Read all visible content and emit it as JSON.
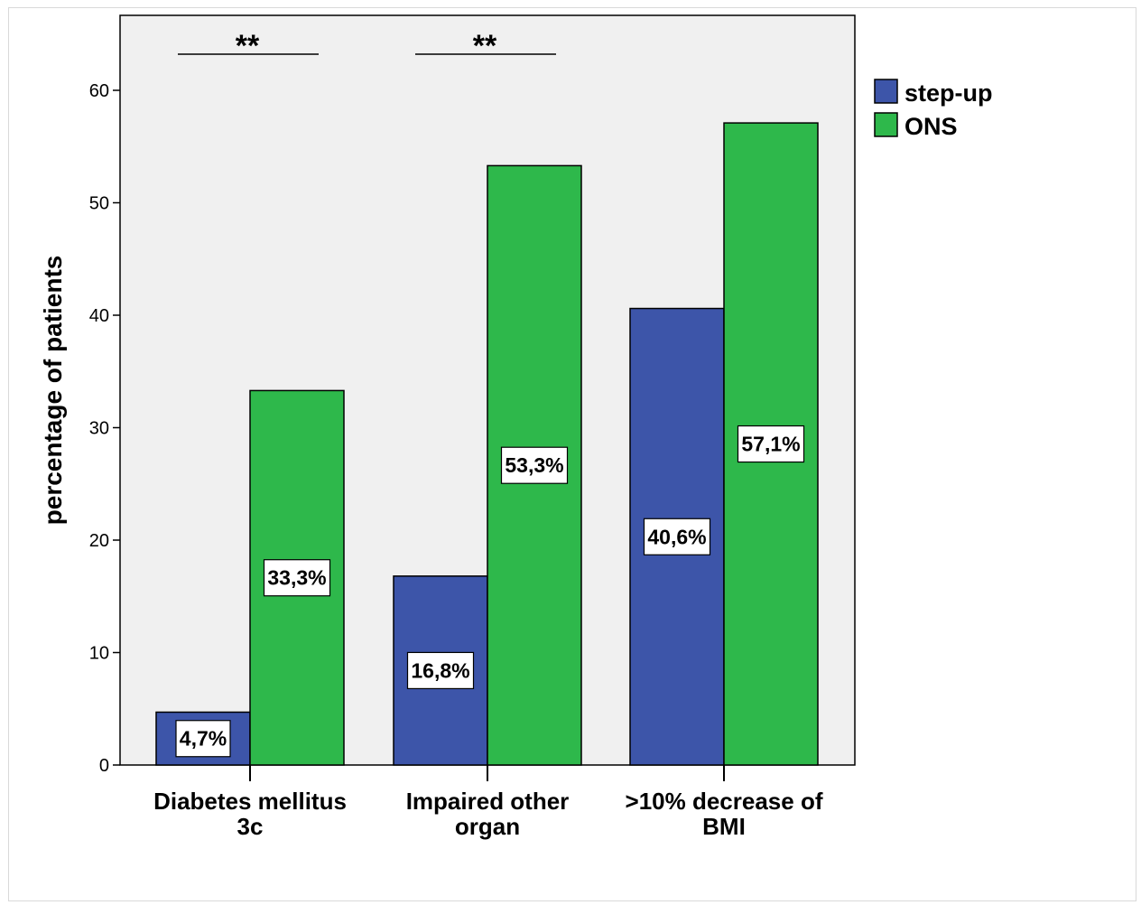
{
  "chart_data": {
    "type": "bar",
    "ylabel": "percentage of patients",
    "xlabel": "",
    "ylim": [
      0,
      66
    ],
    "yticks": [
      0,
      10,
      20,
      30,
      40,
      50,
      60
    ],
    "categories": [
      [
        "Diabetes mellitus",
        "3c"
      ],
      [
        "Impaired other",
        "organ"
      ],
      [
        ">10% decrease of",
        "BMI"
      ]
    ],
    "series": [
      {
        "name": "step-up",
        "color": "#3d55a9",
        "values": [
          4.7,
          16.8,
          40.6
        ],
        "labels": [
          "4,7%",
          "16,8%",
          "40,6%"
        ]
      },
      {
        "name": "ONS",
        "color": "#2eb84b",
        "values": [
          33.3,
          53.3,
          57.1
        ],
        "labels": [
          "33,3%",
          "53,3%",
          "57,1%"
        ]
      }
    ],
    "significance": [
      {
        "category_index": 0,
        "text": "**"
      },
      {
        "category_index": 1,
        "text": "**"
      }
    ],
    "legend_position": "top-right-outside",
    "plot_background": "#f0f0f0",
    "grid": false
  }
}
